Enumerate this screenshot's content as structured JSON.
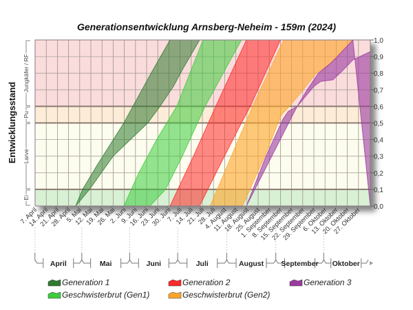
{
  "chart_data": {
    "type": "area",
    "title": "Generationsentwicklung Arnsberg-Neheim - 159m (2024)",
    "ylabel": "Entwicklungsstand",
    "ylim": [
      0,
      1
    ],
    "x_unit": "weeks since 7. April",
    "xlim": [
      0,
      30.06
    ],
    "yticks": [
      "0,0",
      "0,1",
      "0,2",
      "0,3",
      "0,4",
      "0,5",
      "0,6",
      "0,7",
      "0,8",
      "0,9",
      "1,0"
    ],
    "xticks": [
      "7. April",
      "14. April",
      "21. April",
      "28. April",
      "5. Mai",
      "12. Mai",
      "19. Mai",
      "26. Mai",
      "2. Juni",
      "9. Juni",
      "16. Juni",
      "23. Juni",
      "30. Juni",
      "7. Juli",
      "14. Juli",
      "21. Juli",
      "28. Juli",
      "4. August",
      "11. August",
      "18. August",
      "25. August",
      "1. September",
      "8. September",
      "15. September",
      "22. September",
      "29. September",
      "6. Oktober",
      "13. Oktober",
      "20. Oktober",
      "27. Oktober"
    ],
    "months": [
      {
        "label": "April",
        "start": -0.2,
        "end": 4
      },
      {
        "label": "Mai",
        "start": 4,
        "end": 8.3
      },
      {
        "label": "Juni",
        "start": 8.3,
        "end": 12.6
      },
      {
        "label": "Juli",
        "start": 12.6,
        "end": 17
      },
      {
        "label": "August",
        "start": 17,
        "end": 21.4
      },
      {
        "label": "September",
        "start": 21.4,
        "end": 25.7
      },
      {
        "label": "Oktober",
        "start": 25.7,
        "end": 29.7
      }
    ],
    "stages": [
      {
        "label": "Ei",
        "from": 0,
        "to": 0.1,
        "color": "#d8f0d4"
      },
      {
        "label": "Larve",
        "from": 0.1,
        "to": 0.5,
        "color": "#fdfdef"
      },
      {
        "label": "Pu",
        "from": 0.5,
        "to": 0.6,
        "color": "#fcecd8"
      },
      {
        "label": "Jungkäfer / RF",
        "from": 0.6,
        "to": 1.0,
        "color": "#fadcdc"
      }
    ],
    "series": [
      {
        "name": "Generation 1",
        "color": "#2f7a2f",
        "opacity": 0.55,
        "left": [
          [
            3.64,
            0
          ],
          [
            4.26,
            0.1
          ],
          [
            5.6,
            0.25
          ],
          [
            7.96,
            0.5
          ],
          [
            8.77,
            0.6
          ],
          [
            10.4,
            0.8
          ],
          [
            12.1,
            1.0
          ]
        ],
        "right": [
          [
            3.64,
            0
          ],
          [
            4.88,
            0.1
          ],
          [
            7.0,
            0.3
          ],
          [
            10.1,
            0.5
          ],
          [
            11.2,
            0.6
          ],
          [
            12.4,
            0.72
          ],
          [
            13.2,
            0.82
          ],
          [
            14.75,
            1.0
          ]
        ]
      },
      {
        "name": "Geschwisterbrut (Gen1)",
        "color": "#3ccc3c",
        "opacity": 0.55,
        "left": [
          [
            7.96,
            0
          ],
          [
            9.3,
            0.2
          ],
          [
            10.9,
            0.4
          ],
          [
            12.7,
            0.6
          ],
          [
            15.06,
            1.0
          ]
        ],
        "right": [
          [
            10.3,
            0
          ],
          [
            11.7,
            0.1
          ],
          [
            13.2,
            0.3
          ],
          [
            15.25,
            0.6
          ],
          [
            18.5,
            1.0
          ]
        ]
      },
      {
        "name": "Generation 2",
        "color": "#ff2a2a",
        "opacity": 0.55,
        "left": [
          [
            12.1,
            0
          ],
          [
            14.2,
            0.3
          ],
          [
            16.2,
            0.6
          ],
          [
            18.95,
            1.0
          ]
        ],
        "right": [
          [
            14.75,
            0
          ],
          [
            16.6,
            0.25
          ],
          [
            18.5,
            0.5
          ],
          [
            19.3,
            0.6
          ],
          [
            22.0,
            1.0
          ]
        ]
      },
      {
        "name": "Geschwisterbrut (Gen2)",
        "color": "#ffa52a",
        "opacity": 0.6,
        "left": [
          [
            15.7,
            0
          ],
          [
            17.6,
            0.3
          ],
          [
            19.5,
            0.6
          ],
          [
            22.3,
            1.0
          ]
        ],
        "right": [
          [
            18.6,
            0
          ],
          [
            20.6,
            0.3
          ],
          [
            22.1,
            0.55
          ],
          [
            22.8,
            0.6
          ],
          [
            23.8,
            0.68
          ],
          [
            25.2,
            0.8
          ],
          [
            26.2,
            0.84
          ],
          [
            27.1,
            0.9
          ],
          [
            28.5,
            1.0
          ]
        ]
      },
      {
        "name": "Generation 3",
        "color": "#9b3aa0",
        "opacity": 0.6,
        "left": [
          [
            18.95,
            0
          ],
          [
            20.7,
            0.3
          ],
          [
            22.2,
            0.52
          ],
          [
            22.7,
            0.57
          ],
          [
            23.5,
            0.6
          ],
          [
            24.4,
            0.7
          ],
          [
            25.4,
            0.8
          ],
          [
            26.5,
            0.86
          ],
          [
            27.1,
            0.9
          ],
          [
            28.5,
            1.0
          ]
        ],
        "right": [
          [
            30.06,
            0
          ],
          [
            30.06,
            0.93
          ],
          [
            28.5,
            0.88
          ],
          [
            27.5,
            0.81
          ],
          [
            26.7,
            0.76
          ],
          [
            25.6,
            0.75
          ],
          [
            25.0,
            0.72
          ],
          [
            23.5,
            0.6
          ]
        ]
      }
    ],
    "legend_position": "bottom"
  }
}
